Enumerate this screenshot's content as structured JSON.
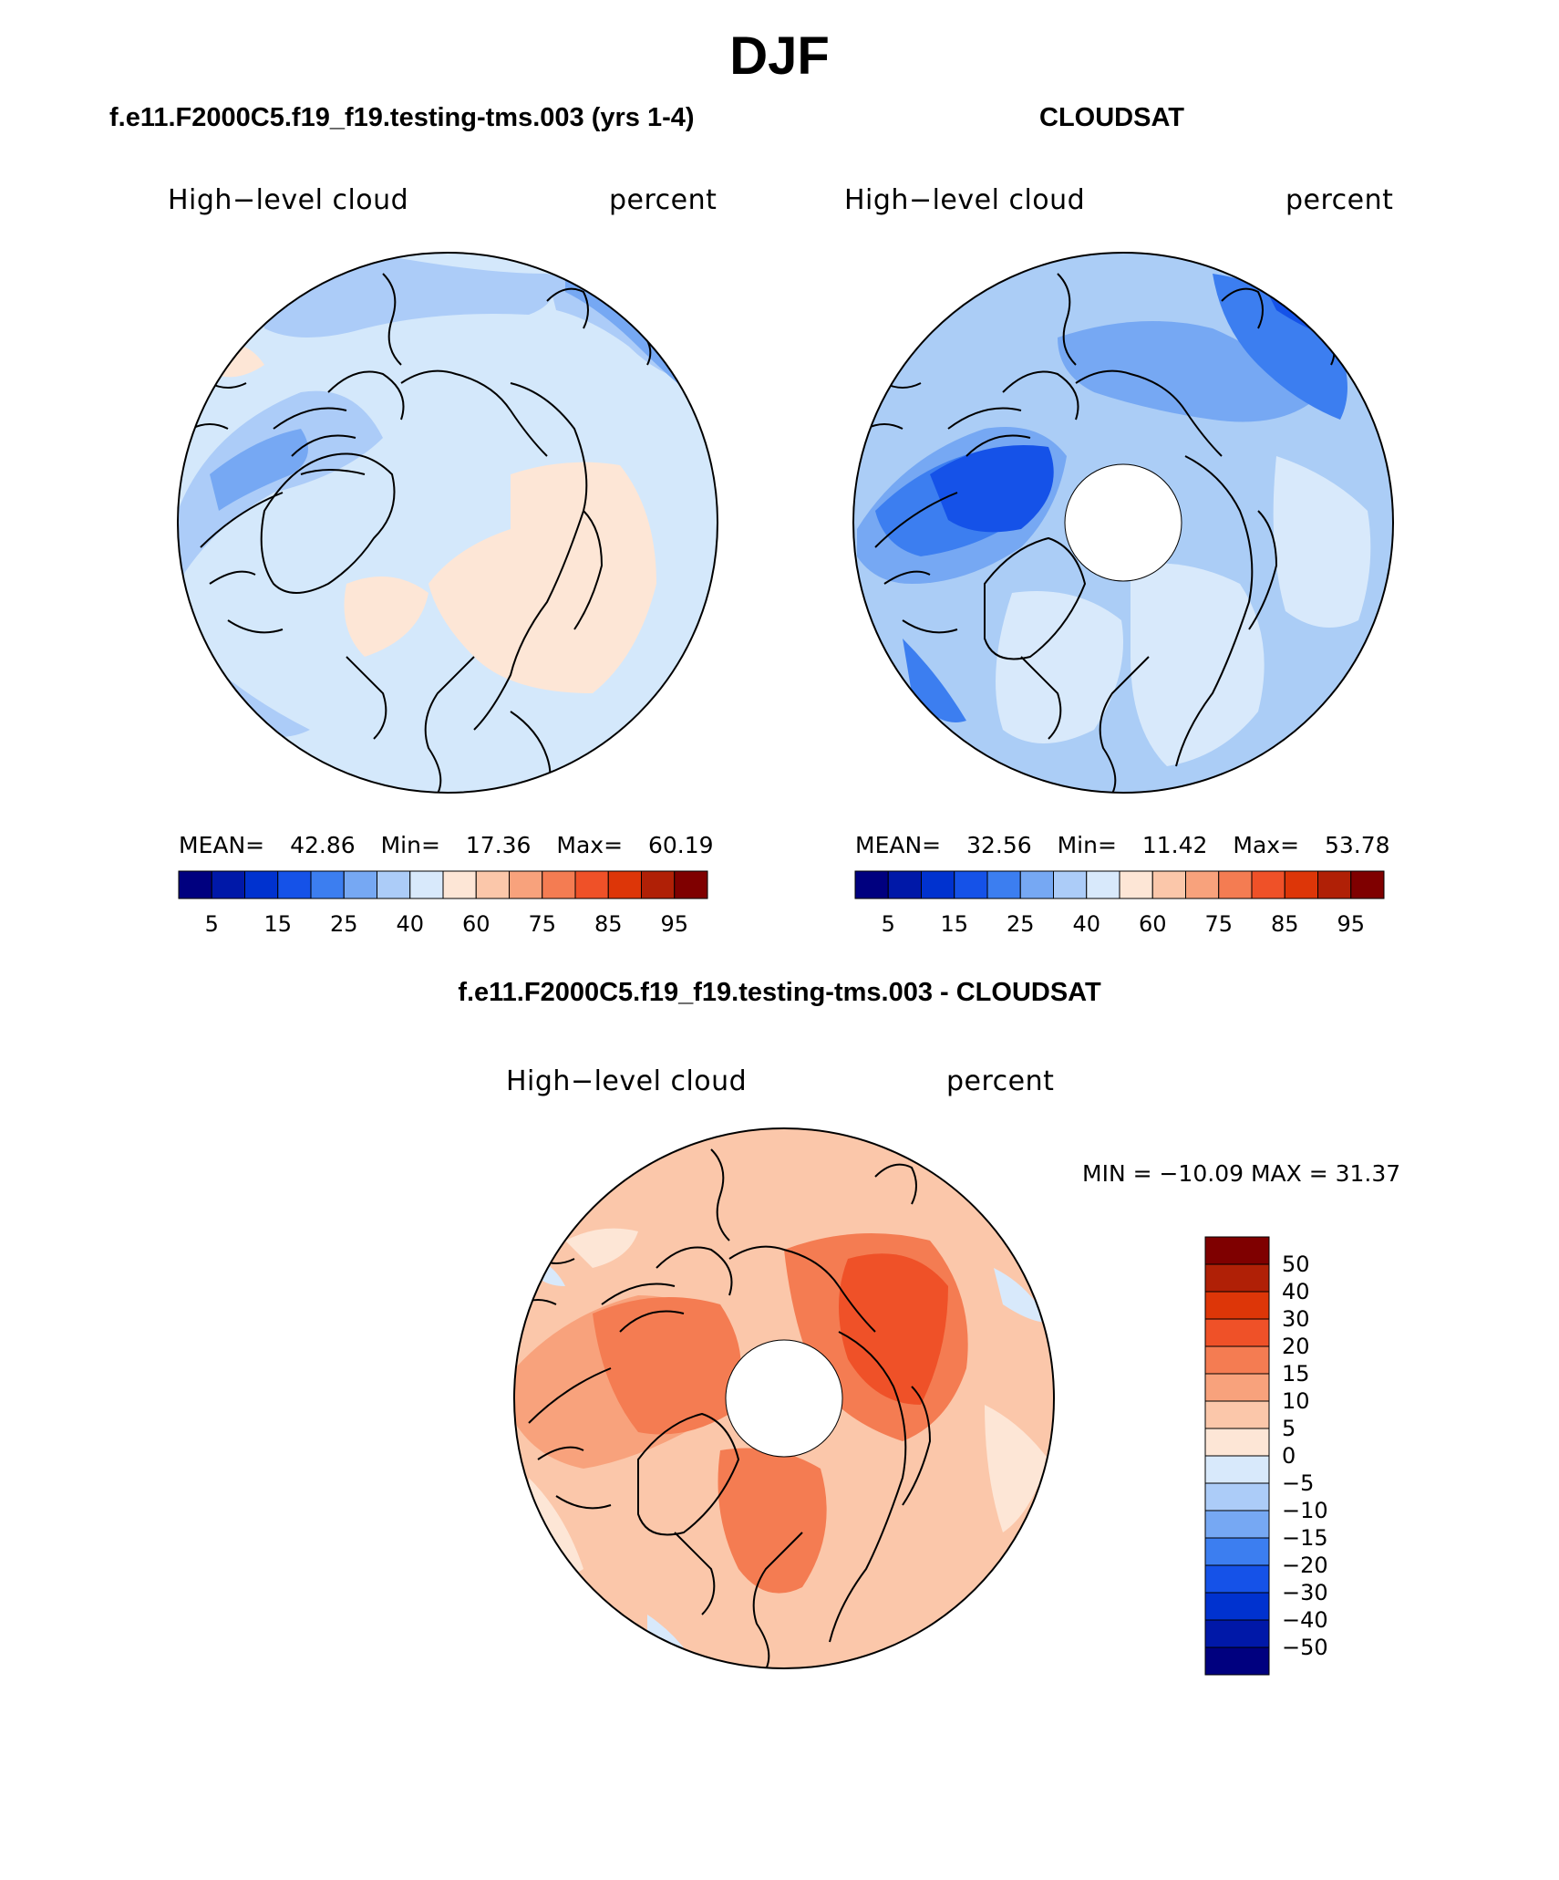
{
  "main_title": "DJF",
  "panels": [
    {
      "title": "f.e11.F2000C5.f19_f19.testing-tms.003 (yrs 1-4)",
      "left_label": "High−level cloud",
      "right_label": "percent",
      "mean_label": "MEAN=",
      "mean": "42.86",
      "min_label": "Min=",
      "min": "17.36",
      "max_label": "Max=",
      "max": "60.19",
      "base_color": "#d4e8fb"
    },
    {
      "title": "CLOUDSAT",
      "left_label": "High−level cloud",
      "right_label": "percent",
      "mean_label": "MEAN=",
      "mean": "32.56",
      "min_label": "Min=",
      "min": "11.42",
      "max_label": "Max=",
      "max": "53.78",
      "base_color": "#abcdf6"
    }
  ],
  "abs_colorbar": {
    "colors": [
      "#00007f",
      "#0018a8",
      "#0032cf",
      "#1552e8",
      "#3c7ef0",
      "#76a8f3",
      "#acccf8",
      "#d8e9fb",
      "#fde6d6",
      "#fbc7aa",
      "#f8a27c",
      "#f47c52",
      "#ef5128",
      "#dd3608",
      "#b02006",
      "#7f0000"
    ],
    "tick_labels": [
      "5",
      "15",
      "25",
      "40",
      "60",
      "75",
      "85",
      "95"
    ]
  },
  "diff_panel": {
    "title": "f.e11.F2000C5.f19_f19.testing-tms.003 - CLOUDSAT",
    "left_label": "High−level cloud",
    "right_label": "percent",
    "minmax_text": "MIN = −10.09 MAX =   31.37",
    "base_color": "#fbc7aa"
  },
  "diff_colorbar": {
    "colors": [
      "#7f0000",
      "#b02006",
      "#dd3608",
      "#ef5128",
      "#f47c52",
      "#f8a27c",
      "#fbc7aa",
      "#fde6d6",
      "#d8e9fb",
      "#acccf8",
      "#76a8f3",
      "#3c7ef0",
      "#1552e8",
      "#0032cf",
      "#0018a8",
      "#00007f"
    ],
    "tick_labels": [
      "50",
      "40",
      "30",
      "20",
      "15",
      "10",
      "5",
      "0",
      "−5",
      "−10",
      "−15",
      "−20",
      "−30",
      "−40",
      "−50"
    ]
  }
}
